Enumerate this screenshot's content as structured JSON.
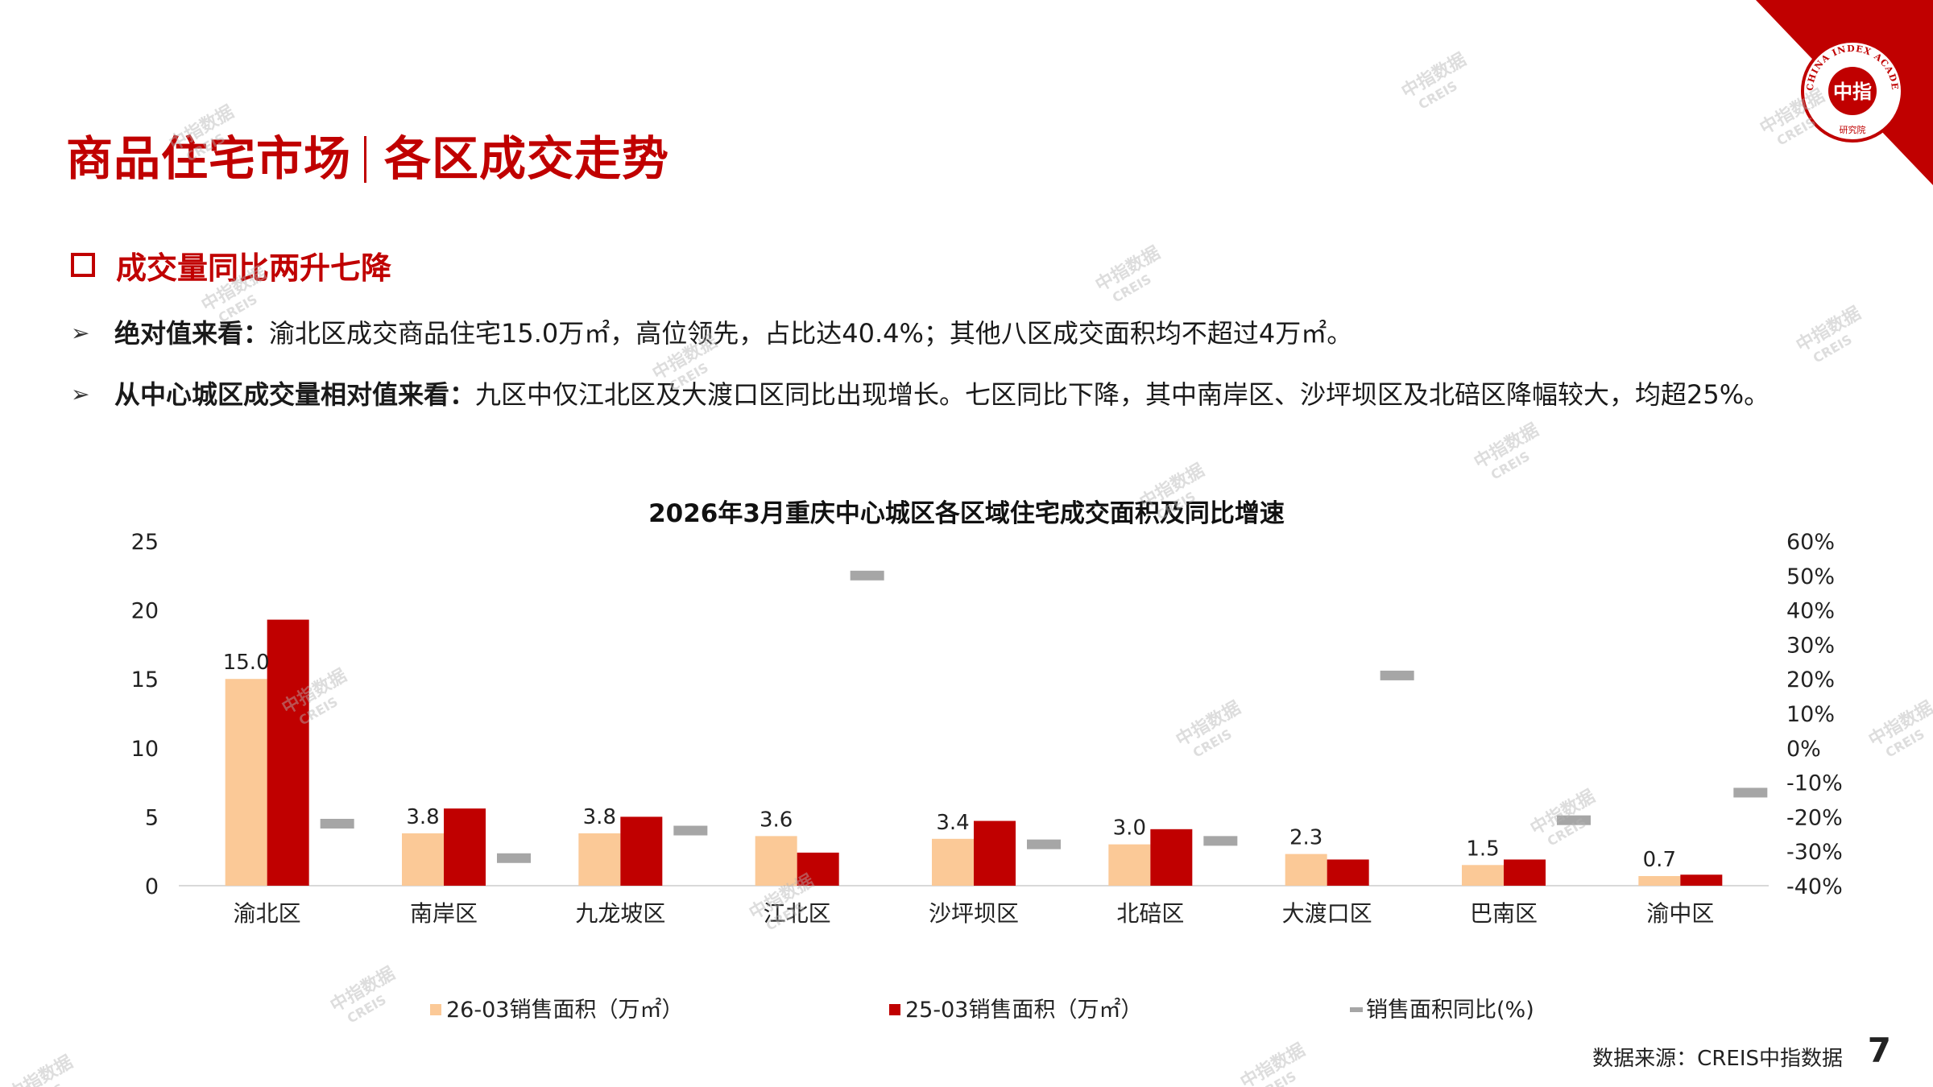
{
  "slide": {
    "title_left": "商品住宅市场",
    "title_right": "各区成交走势",
    "section_heading": "成交量同比两升七降",
    "bullets": [
      {
        "bold": "绝对值来看：",
        "text": "渝北区成交商品住宅15.0万㎡，高位领先，占比达40.4%；其他八区成交面积均不超过4万㎡。"
      },
      {
        "bold": "从中心城区成交量相对值来看：",
        "text": "九区中仅江北区及大渡口区同比出现增长。七区同比下降，其中南岸区、沙坪坝区及北碚区降幅较大，均超25%。"
      }
    ],
    "source": "数据来源：CREIS中指数据",
    "page_number": "7",
    "logo": {
      "text_en": "CHINA INDEX ACADEMY",
      "text_cn": "中指",
      "sub": "研究院"
    },
    "watermark": {
      "line1": "中指数据",
      "line2": "CREIS"
    },
    "colors": {
      "brand_red": "#c00000",
      "series1": "#fbc997",
      "series2": "#c00000",
      "series3": "#a6a6a6"
    }
  },
  "chart_data": {
    "type": "bar",
    "title": "2026年3月重庆中心城区各区域住宅成交面积及同比增速",
    "categories": [
      "渝北区",
      "南岸区",
      "九龙坡区",
      "江北区",
      "沙坪坝区",
      "北碚区",
      "大渡口区",
      "巴南区",
      "渝中区"
    ],
    "series": [
      {
        "name": "26-03销售面积（万㎡）",
        "type": "bar",
        "axis": "left",
        "values": [
          15.0,
          3.8,
          3.8,
          3.6,
          3.4,
          3.0,
          2.3,
          1.5,
          0.7
        ],
        "data_labels": [
          "15.0",
          "3.8",
          "3.8",
          "3.6",
          "3.4",
          "3.0",
          "2.3",
          "1.5",
          "0.7"
        ]
      },
      {
        "name": "25-03销售面积（万㎡）",
        "type": "bar",
        "axis": "left",
        "values": [
          19.3,
          5.6,
          5.0,
          2.4,
          4.7,
          4.1,
          1.9,
          1.9,
          0.8
        ]
      },
      {
        "name": "销售面积同比(%)",
        "type": "marker",
        "axis": "right",
        "values": [
          -22.0,
          -32.0,
          -24.0,
          50.0,
          -28.0,
          -27.0,
          21.0,
          -21.0,
          -13.0
        ]
      }
    ],
    "y_left": {
      "min": 0,
      "max": 25,
      "ticks": [
        0,
        5,
        10,
        15,
        20,
        25
      ],
      "tick_labels": [
        "0",
        "5",
        "10",
        "15",
        "20",
        "25"
      ]
    },
    "y_right": {
      "min": -40,
      "max": 60,
      "ticks": [
        -40,
        -30,
        -20,
        -10,
        0,
        10,
        20,
        30,
        40,
        50,
        60
      ],
      "tick_labels": [
        "-40%",
        "-30%",
        "-20%",
        "-10%",
        "0%",
        "10%",
        "20%",
        "30%",
        "40%",
        "50%",
        "60%"
      ]
    },
    "grid": false,
    "legend_position": "bottom"
  }
}
